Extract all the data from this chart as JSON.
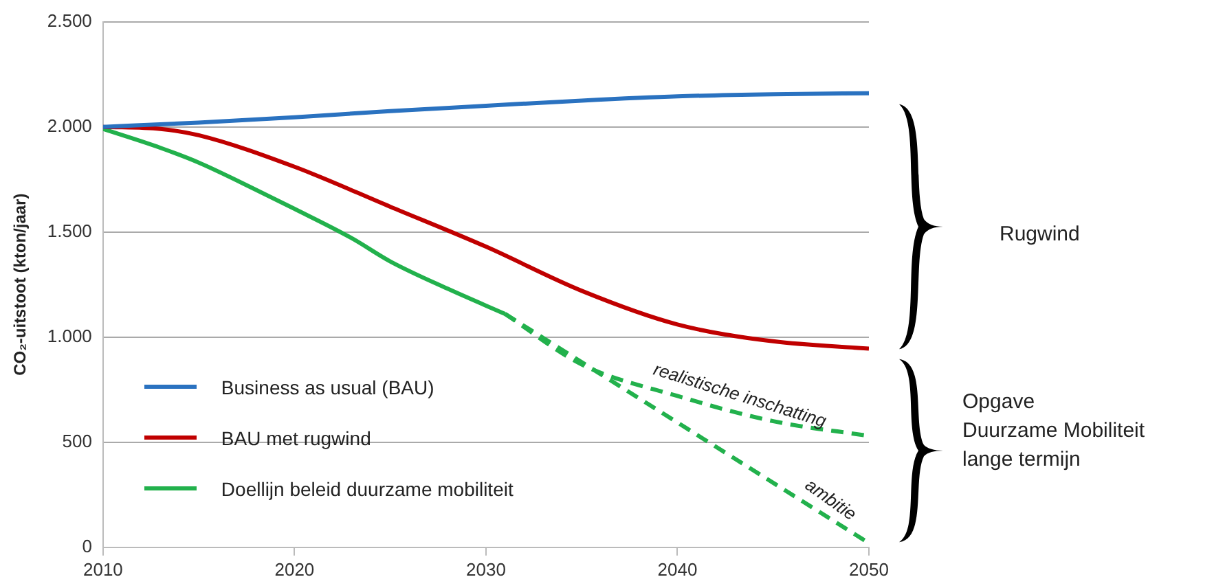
{
  "chart_data": {
    "type": "line",
    "ylabel": "CO₂-uitstoot (kton/jaar)",
    "xlim": [
      2010,
      2050
    ],
    "xticks": [
      2010,
      2020,
      2030,
      2040,
      2050
    ],
    "ylim": [
      0,
      2500
    ],
    "yticks": [
      {
        "value": 0,
        "label": "0"
      },
      {
        "value": 500,
        "label": "500"
      },
      {
        "value": 1000,
        "label": "1.000"
      },
      {
        "value": 1500,
        "label": "1.500"
      },
      {
        "value": 2000,
        "label": "2.000"
      },
      {
        "value": 2500,
        "label": "2.500"
      }
    ],
    "grid": "y",
    "legend": "bottom left",
    "marker": "none",
    "series": [
      {
        "name": "Business as usual (BAU)",
        "color": "#2a72c0",
        "x": [
          2010,
          2015,
          2020,
          2025,
          2030,
          2035,
          2040,
          2045,
          2050
        ],
        "values": [
          2000,
          2020,
          2045,
          2075,
          2100,
          2125,
          2145,
          2155,
          2160
        ]
      },
      {
        "name": "BAU met rugwind",
        "color": "#c00000",
        "x": [
          2010,
          2013,
          2015,
          2020,
          2025,
          2030,
          2035,
          2040,
          2045,
          2050
        ],
        "values": [
          2000,
          1990,
          1960,
          1810,
          1620,
          1430,
          1220,
          1060,
          980,
          945
        ]
      },
      {
        "name": "Doellijn beleid duurzame mobiliteit",
        "color": "#22b14c",
        "x": [
          2010,
          2013,
          2015,
          2018,
          2020,
          2023,
          2025,
          2028,
          2031
        ],
        "values": [
          1990,
          1900,
          1830,
          1700,
          1610,
          1470,
          1360,
          1230,
          1110
        ]
      },
      {
        "color": "#22b14c",
        "line_style": "dashed",
        "x": [
          2031,
          2035,
          2040,
          2045,
          2050
        ],
        "values": [
          1110,
          870,
          720,
          600,
          530
        ]
      },
      {
        "color": "#22b14c",
        "line_style": "dashed",
        "x": [
          2031,
          2050
        ],
        "values": [
          1110,
          20
        ]
      }
    ],
    "annotations": [
      {
        "text": "realistische inschatting",
        "x": 2043,
        "y": 648
      },
      {
        "text": "ambitie",
        "x": 2047.5,
        "y": 163
      },
      "Rugwind",
      "Opgave\nDuurzame Mobiliteit\nlange termijn"
    ]
  }
}
